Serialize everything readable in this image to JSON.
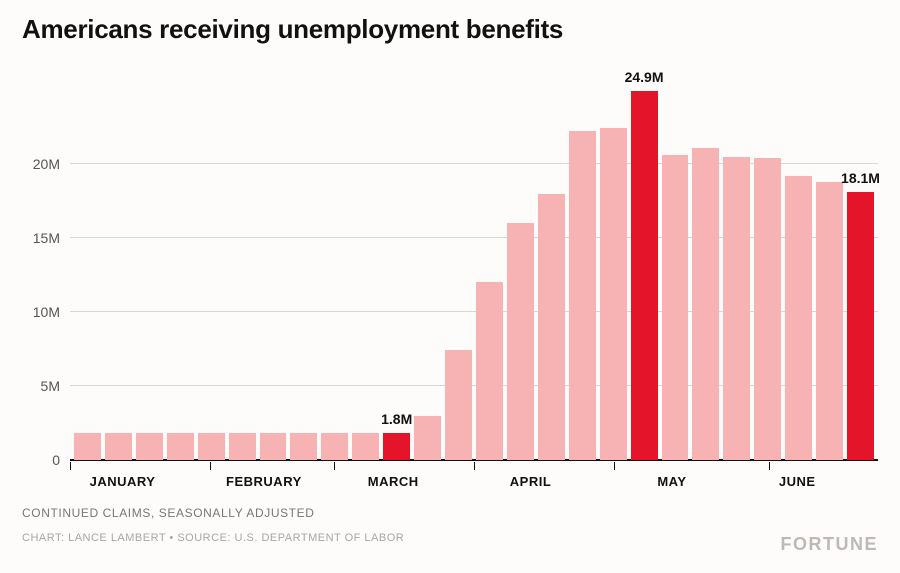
{
  "title": "Americans receiving unemployment benefits",
  "subtitle": "CONTINUED CLAIMS, SEASONALLY ADJUSTED",
  "credit": "CHART: LANCE LAMBERT • SOURCE: U.S. DEPARTMENT OF LABOR",
  "brand": "FORTUNE",
  "chart": {
    "type": "bar",
    "background_color": "#fdfcfa",
    "grid_color": "#d9d6d2",
    "baseline_color": "#111111",
    "pale_color": "#f7b3b3",
    "highlight_color": "#e4142a",
    "text_color": "#111111",
    "title_fontsize": 26,
    "ylabel_fontsize": 14,
    "barlabel_fontsize": 14,
    "ymax": 25,
    "yticks": [
      0,
      5,
      10,
      15,
      20
    ],
    "yticklabels": [
      "0",
      "5M",
      "10M",
      "15M",
      "20M"
    ],
    "bars": [
      {
        "v": 1.8,
        "hl": false
      },
      {
        "v": 1.8,
        "hl": false
      },
      {
        "v": 1.8,
        "hl": false
      },
      {
        "v": 1.8,
        "hl": false
      },
      {
        "v": 1.8,
        "hl": false
      },
      {
        "v": 1.8,
        "hl": false
      },
      {
        "v": 1.8,
        "hl": false
      },
      {
        "v": 1.8,
        "hl": false
      },
      {
        "v": 1.8,
        "hl": false
      },
      {
        "v": 1.8,
        "hl": false
      },
      {
        "v": 1.8,
        "hl": true,
        "label": "1.8M"
      },
      {
        "v": 3.0,
        "hl": false
      },
      {
        "v": 7.4,
        "hl": false
      },
      {
        "v": 12.0,
        "hl": false
      },
      {
        "v": 16.0,
        "hl": false
      },
      {
        "v": 18.0,
        "hl": false
      },
      {
        "v": 22.2,
        "hl": false
      },
      {
        "v": 22.4,
        "hl": false
      },
      {
        "v": 24.9,
        "hl": true,
        "label": "24.9M"
      },
      {
        "v": 20.6,
        "hl": false
      },
      {
        "v": 21.1,
        "hl": false
      },
      {
        "v": 20.5,
        "hl": false
      },
      {
        "v": 20.4,
        "hl": false
      },
      {
        "v": 19.2,
        "hl": false
      },
      {
        "v": 18.8,
        "hl": false
      },
      {
        "v": 18.1,
        "hl": true,
        "label": "18.1M"
      }
    ],
    "xaxis": {
      "ticks": [
        0,
        17.3,
        32.7,
        50.0,
        67.3,
        86.5
      ],
      "labels": [
        {
          "text": "JANUARY",
          "pos": 6.5
        },
        {
          "text": "FEBRUARY",
          "pos": 24
        },
        {
          "text": "MARCH",
          "pos": 40
        },
        {
          "text": "APRIL",
          "pos": 57
        },
        {
          "text": "MAY",
          "pos": 74.5
        },
        {
          "text": "JUNE",
          "pos": 90
        }
      ]
    }
  }
}
